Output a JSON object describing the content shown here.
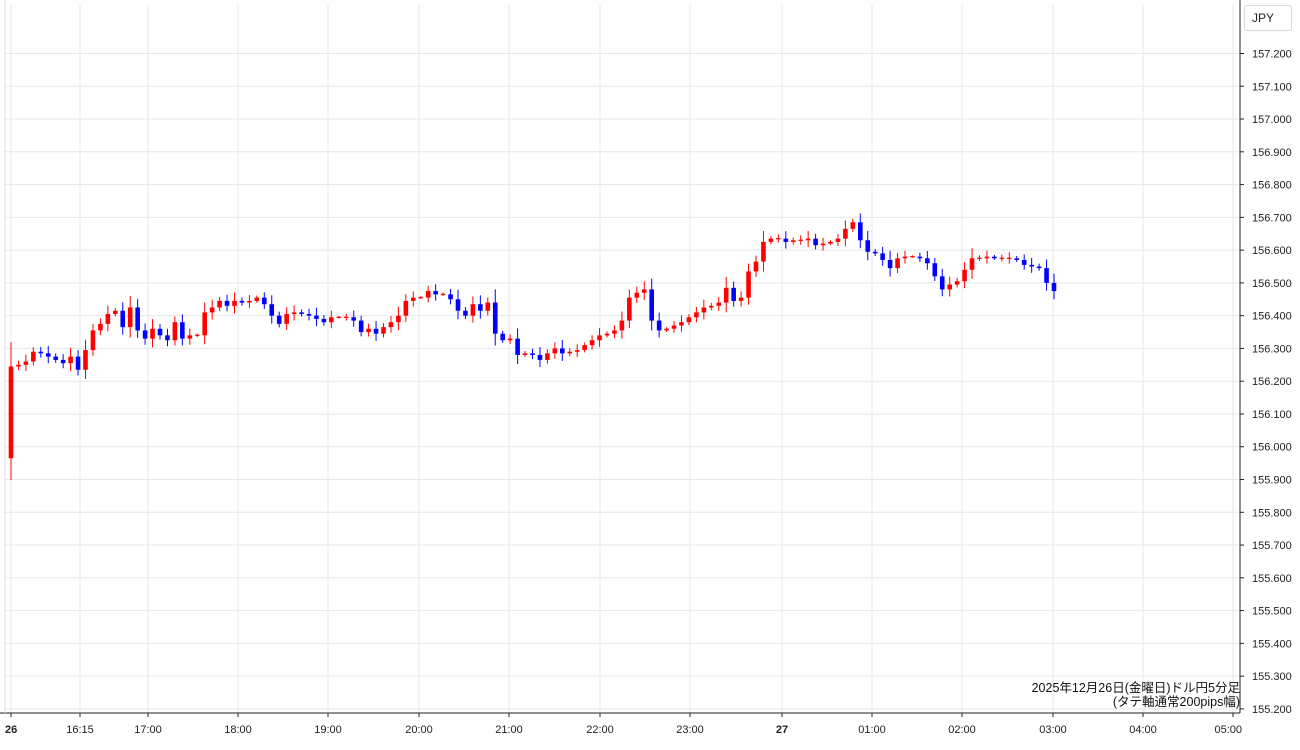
{
  "currency_label": "JPY",
  "caption": {
    "line1": "2025年12月26日(金曜日)ドル円5分足",
    "line2": "(タテ軸通常200pips幅)"
  },
  "colors": {
    "up": "#ff0000",
    "down": "#0000ff",
    "grid": "#e3e8ee",
    "axis": "#222222"
  },
  "chart_data": {
    "type": "candlestick",
    "title": "",
    "ylim": [
      155.2,
      157.25
    ],
    "grid": true,
    "x_tick_labels": [
      "26",
      "16:15",
      "17:00",
      "18:00",
      "19:00",
      "20:00",
      "21:00",
      "22:00",
      "23:00",
      "27",
      "01:00",
      "02:00",
      "03:00",
      "04:00",
      "05:00"
    ],
    "y_tick_labels": [
      "157.200",
      "157.100",
      "157.000",
      "156.900",
      "156.800",
      "156.700",
      "156.600",
      "156.500",
      "156.400",
      "156.300",
      "156.200",
      "156.100",
      "156.000",
      "155.900",
      "155.800",
      "155.700",
      "155.600",
      "155.500",
      "155.400",
      "155.300",
      "155.200"
    ],
    "closes": [
      156.245,
      156.25,
      156.26,
      156.29,
      156.285,
      156.275,
      156.265,
      156.255,
      156.275,
      156.235,
      156.295,
      156.355,
      156.375,
      156.405,
      156.415,
      156.365,
      156.425,
      156.355,
      156.33,
      156.36,
      156.34,
      156.325,
      156.38,
      156.33,
      156.34,
      156.34,
      156.41,
      156.425,
      156.445,
      156.43,
      156.445,
      156.44,
      156.445,
      156.455,
      156.435,
      156.4,
      156.375,
      156.405,
      156.41,
      156.405,
      156.4,
      156.39,
      156.38,
      156.395,
      156.395,
      156.395,
      156.385,
      156.35,
      156.36,
      156.345,
      156.365,
      156.38,
      156.4,
      156.445,
      156.455,
      156.455,
      156.475,
      156.465,
      156.465,
      156.45,
      156.415,
      156.4,
      156.435,
      156.415,
      156.44,
      156.345,
      156.325,
      156.33,
      156.28,
      156.285,
      156.28,
      156.265,
      156.285,
      156.3,
      156.285,
      156.29,
      156.295,
      156.31,
      156.325,
      156.34,
      156.345,
      156.355,
      156.385,
      156.455,
      156.47,
      156.48,
      156.385,
      156.355,
      156.36,
      156.37,
      156.38,
      156.395,
      156.41,
      156.425,
      156.43,
      156.44,
      156.485,
      156.445,
      156.455,
      156.535,
      156.565,
      156.625,
      156.635,
      156.635,
      156.625,
      156.63,
      156.63,
      156.635,
      156.615,
      156.62,
      156.625,
      156.635,
      156.665,
      156.685,
      156.63,
      156.595,
      156.59,
      156.57,
      156.545,
      156.575,
      156.58,
      156.58,
      156.575,
      156.56,
      156.52,
      156.48,
      156.495,
      156.505,
      156.54,
      156.575,
      156.575,
      156.58,
      156.575,
      156.575,
      156.575,
      156.57,
      156.555,
      156.55,
      156.545,
      156.5,
      156.475
    ]
  }
}
